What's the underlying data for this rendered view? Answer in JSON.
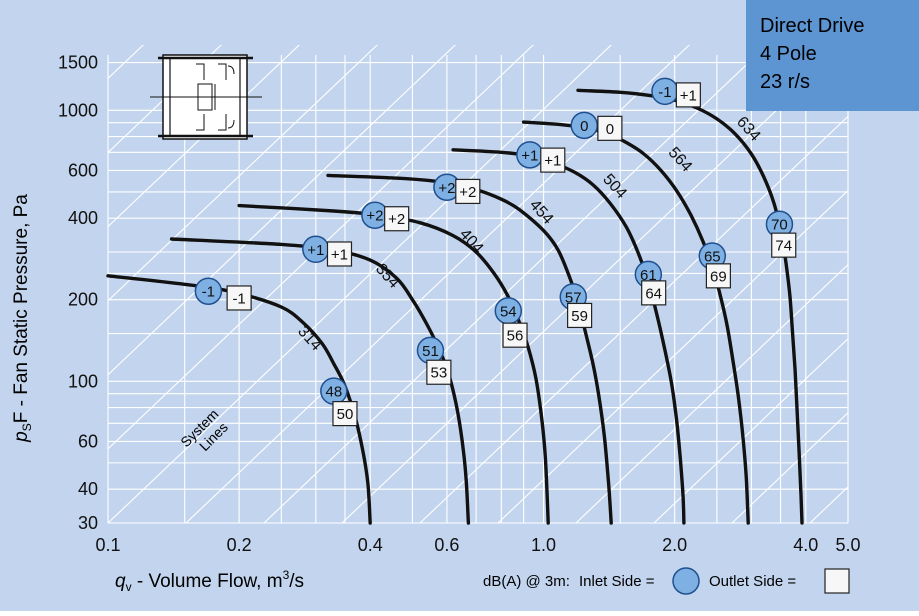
{
  "colors": {
    "background": "#c3d5ee",
    "grid": "#ffffff",
    "curve": "#111111",
    "inlet_fill": "#7fb0e3",
    "inlet_stroke": "#1f4f8e",
    "outlet_fill": "#f7f7f7",
    "outlet_stroke": "#222222",
    "info_box": "#5d95d3",
    "text": "#111111"
  },
  "info_box": {
    "lines": [
      "Direct Drive",
      "4 Pole",
      "23 r/s"
    ]
  },
  "system_lines_label": [
    "System",
    "Lines"
  ],
  "footer": {
    "legend_prefix": "dB(A) @ 3m:",
    "inlet_label": "Inlet Side =",
    "outlet_label": "Outlet Side ="
  },
  "chart_data": {
    "type": "line",
    "x_scale": "log",
    "y_scale": "log",
    "xlabel": "q_v - Volume Flow, m³/s",
    "ylabel": "p_sF - Fan Static Pressure, Pa",
    "xlim": [
      0.1,
      5.0
    ],
    "ylim": [
      30,
      1600
    ],
    "xticks": [
      0.1,
      0.2,
      0.4,
      0.6,
      1.0,
      2.0,
      4.0,
      5.0
    ],
    "xtick_labels": [
      "0.1",
      "0.2",
      "0.4",
      "0.6",
      "1.0",
      "2.0",
      "4.0",
      "5.0"
    ],
    "yticks": [
      30,
      40,
      60,
      100,
      200,
      400,
      600,
      1000,
      1500
    ],
    "ytick_labels": [
      "30",
      "40",
      "60",
      "100",
      "200",
      "400",
      "600",
      "1000",
      "1500"
    ],
    "grid": true,
    "series": [
      {
        "name": "314",
        "points": [
          [
            0.1,
            245
          ],
          [
            0.16,
            225
          ],
          [
            0.2,
            211
          ],
          [
            0.25,
            188
          ],
          [
            0.28,
            165
          ],
          [
            0.31,
            138
          ],
          [
            0.33,
            116
          ],
          [
            0.35,
            96
          ],
          [
            0.37,
            73
          ],
          [
            0.385,
            55
          ],
          [
            0.395,
            42
          ],
          [
            0.4,
            30
          ]
        ],
        "label_at": [
          0.285,
          140
        ],
        "inlet": {
          "value": "48",
          "at": [
            0.33,
            92
          ]
        },
        "outlet": {
          "value": "50",
          "at": [
            0.35,
            76
          ]
        },
        "inlet_top": {
          "value": "-1",
          "at": [
            0.17,
            215
          ]
        },
        "outlet_top": {
          "value": "-1",
          "at": [
            0.2,
            203
          ]
        }
      },
      {
        "name": "354",
        "points": [
          [
            0.14,
            335
          ],
          [
            0.25,
            320
          ],
          [
            0.33,
            305
          ],
          [
            0.4,
            280
          ],
          [
            0.46,
            240
          ],
          [
            0.5,
            200
          ],
          [
            0.54,
            162
          ],
          [
            0.58,
            128
          ],
          [
            0.61,
            102
          ],
          [
            0.635,
            77
          ],
          [
            0.655,
            55
          ],
          [
            0.665,
            42
          ],
          [
            0.672,
            30
          ]
        ],
        "label_at": [
          0.43,
          238
        ],
        "inlet": {
          "value": "51",
          "at": [
            0.55,
            130
          ]
        },
        "outlet": {
          "value": "53",
          "at": [
            0.575,
            108
          ]
        },
        "inlet_top": {
          "value": "+1",
          "at": [
            0.3,
            307
          ]
        },
        "outlet_top": {
          "value": "+1",
          "at": [
            0.34,
            295
          ]
        }
      },
      {
        "name": "404",
        "points": [
          [
            0.2,
            445
          ],
          [
            0.33,
            425
          ],
          [
            0.42,
            410
          ],
          [
            0.52,
            385
          ],
          [
            0.62,
            345
          ],
          [
            0.7,
            300
          ],
          [
            0.77,
            250
          ],
          [
            0.83,
            205
          ],
          [
            0.88,
            165
          ],
          [
            0.92,
            135
          ],
          [
            0.96,
            103
          ],
          [
            0.99,
            73
          ],
          [
            1.01,
            52
          ],
          [
            1.025,
            30
          ]
        ],
        "label_at": [
          0.67,
          320
        ],
        "inlet": {
          "value": "54",
          "at": [
            0.83,
            182
          ]
        },
        "outlet": {
          "value": "56",
          "at": [
            0.86,
            148
          ]
        },
        "inlet_top": {
          "value": "+2",
          "at": [
            0.41,
            410
          ]
        },
        "outlet_top": {
          "value": "+2",
          "at": [
            0.46,
            398
          ]
        }
      },
      {
        "name": "454",
        "points": [
          [
            0.32,
            575
          ],
          [
            0.48,
            560
          ],
          [
            0.6,
            540
          ],
          [
            0.7,
            510
          ],
          [
            0.8,
            470
          ],
          [
            0.88,
            430
          ],
          [
            1.0,
            360
          ],
          [
            1.08,
            305
          ],
          [
            1.15,
            240
          ],
          [
            1.2,
            195
          ],
          [
            1.25,
            150
          ],
          [
            1.3,
            115
          ],
          [
            1.34,
            88
          ],
          [
            1.38,
            62
          ],
          [
            1.41,
            42
          ],
          [
            1.43,
            30
          ]
        ],
        "label_at": [
          0.97,
          410
        ],
        "inlet": {
          "value": "57",
          "at": [
            1.17,
            205
          ]
        },
        "outlet": {
          "value": "59",
          "at": [
            1.21,
            175
          ]
        },
        "inlet_top": {
          "value": "+2",
          "at": [
            0.6,
            520
          ]
        },
        "outlet_top": {
          "value": "+2",
          "at": [
            0.67,
            502
          ]
        }
      },
      {
        "name": "504",
        "points": [
          [
            0.62,
            715
          ],
          [
            0.8,
            700
          ],
          [
            0.92,
            680
          ],
          [
            1.05,
            640
          ],
          [
            1.18,
            590
          ],
          [
            1.3,
            530
          ],
          [
            1.42,
            455
          ],
          [
            1.55,
            370
          ],
          [
            1.66,
            290
          ],
          [
            1.75,
            225
          ],
          [
            1.83,
            170
          ],
          [
            1.9,
            130
          ],
          [
            1.97,
            97
          ],
          [
            2.02,
            72
          ],
          [
            2.06,
            52
          ],
          [
            2.09,
            38
          ],
          [
            2.1,
            30
          ]
        ],
        "label_at": [
          1.43,
          510
        ],
        "inlet": {
          "value": "61",
          "at": [
            1.74,
            248
          ]
        },
        "outlet": {
          "value": "64",
          "at": [
            1.79,
            212
          ]
        },
        "inlet_top": {
          "value": "+1",
          "at": [
            0.93,
            685
          ]
        },
        "outlet_top": {
          "value": "+1",
          "at": [
            1.05,
            655
          ]
        }
      },
      {
        "name": "564",
        "points": [
          [
            0.9,
            905
          ],
          [
            1.1,
            885
          ],
          [
            1.25,
            860
          ],
          [
            1.4,
            820
          ],
          [
            1.55,
            760
          ],
          [
            1.7,
            690
          ],
          [
            1.86,
            600
          ],
          [
            2.02,
            505
          ],
          [
            2.18,
            410
          ],
          [
            2.32,
            330
          ],
          [
            2.45,
            260
          ],
          [
            2.55,
            205
          ],
          [
            2.64,
            160
          ],
          [
            2.72,
            120
          ],
          [
            2.8,
            88
          ],
          [
            2.87,
            62
          ],
          [
            2.92,
            44
          ],
          [
            2.95,
            30
          ]
        ],
        "label_at": [
          2.02,
          640
        ],
        "inlet": {
          "value": "65",
          "at": [
            2.44,
            290
          ]
        },
        "outlet": {
          "value": "69",
          "at": [
            2.52,
            245
          ]
        },
        "inlet_top": {
          "value": "0",
          "at": [
            1.24,
            880
          ]
        },
        "outlet_top": {
          "value": "0",
          "at": [
            1.42,
            858
          ]
        }
      },
      {
        "name": "634",
        "points": [
          [
            1.2,
            1185
          ],
          [
            1.5,
            1165
          ],
          [
            1.75,
            1135
          ],
          [
            2.0,
            1090
          ],
          [
            2.25,
            1020
          ],
          [
            2.5,
            930
          ],
          [
            2.75,
            820
          ],
          [
            3.0,
            690
          ],
          [
            3.2,
            570
          ],
          [
            3.38,
            455
          ],
          [
            3.5,
            360
          ],
          [
            3.6,
            275
          ],
          [
            3.68,
            205
          ],
          [
            3.73,
            150
          ],
          [
            3.78,
            110
          ],
          [
            3.82,
            78
          ],
          [
            3.86,
            55
          ],
          [
            3.9,
            38
          ],
          [
            3.92,
            30
          ]
        ],
        "label_at": [
          2.9,
          830
        ],
        "inlet": {
          "value": "70",
          "at": [
            3.48,
            380
          ]
        },
        "outlet": {
          "value": "74",
          "at": [
            3.56,
            318
          ]
        },
        "inlet_top": {
          "value": "-1",
          "at": [
            1.9,
            1175
          ]
        },
        "outlet_top": {
          "value": "+1",
          "at": [
            2.15,
            1140
          ]
        }
      }
    ]
  }
}
